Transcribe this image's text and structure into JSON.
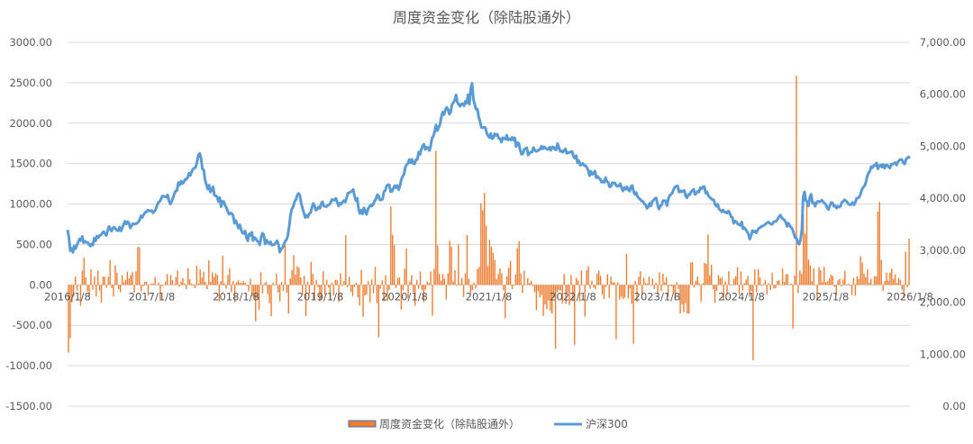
{
  "chart_data": {
    "type": "bar+line",
    "title": "周度资金变化（除陆股通外）",
    "left_axis": {
      "ylim": [
        -1500,
        3000
      ],
      "ticks": [
        -1500,
        -1000,
        -500,
        0,
        500,
        1000,
        1500,
        2000,
        2500,
        3000
      ],
      "tick_labels": [
        "-1500.00",
        "-1000.00",
        "-500.00",
        "0.00",
        "500.00",
        "1000.00",
        "1500.00",
        "2000.00",
        "2500.00",
        "3000.00"
      ]
    },
    "right_axis": {
      "ylim": [
        0,
        7000
      ],
      "ticks": [
        0,
        1000,
        2000,
        3000,
        4000,
        5000,
        6000,
        7000
      ],
      "tick_labels": [
        "0.00",
        "1,000.00",
        "2,000.00",
        "3,000.00",
        "4,000.00",
        "5,000.00",
        "6,000.00",
        "7,000.00"
      ]
    },
    "x_tick_labels": [
      "2016/1/8",
      "2017/1/8",
      "2018/1/8",
      "2019/1/8",
      "2020/1/8",
      "2021/1/8",
      "2022/1/8",
      "2023/1/8",
      "2024/1/8",
      "2025/1/8",
      "2026/1/8"
    ],
    "grid": true,
    "legend_position": "bottom",
    "colors": {
      "bars": "#ED7D31",
      "line": "#5B9BD5",
      "grid": "#D9D9D9",
      "text": "#595959"
    },
    "series": [
      {
        "name": "周度资金变化（除陆股通外）",
        "type": "bar",
        "axis": "left",
        "values": [
          -836,
          -660,
          -216,
          -141,
          104,
          -69,
          2,
          -258,
          176,
          337,
          94,
          -83,
          -139,
          192,
          -57,
          101,
          -141,
          175,
          -71,
          -218,
          104,
          100,
          -35,
          100,
          304,
          -40,
          -143,
          241,
          151,
          -52,
          -90,
          119,
          32,
          60,
          163,
          78,
          123,
          159,
          -95,
          168,
          470,
          465,
          -80,
          -16,
          37,
          42,
          -130,
          6,
          17,
          17,
          96,
          3,
          29,
          -180,
          -16,
          -5,
          43,
          134,
          -6,
          121,
          58,
          -6,
          97,
          179,
          -22,
          40,
          83,
          19,
          -51,
          206,
          70,
          17,
          -11,
          -41,
          237,
          16,
          192,
          90,
          165,
          38,
          -54,
          303,
          37,
          157,
          99,
          145,
          120,
          -204,
          48,
          361,
          21,
          -47,
          122,
          204,
          -88,
          45,
          -215,
          33,
          57,
          29,
          25,
          44,
          27,
          -12,
          -81,
          75,
          -142,
          -160,
          -449,
          -160,
          -310,
          156,
          -106,
          16,
          36,
          -112,
          -226,
          -387,
          27,
          -8,
          137,
          -95,
          -204,
          37,
          -75,
          501,
          -98,
          -353,
          79,
          185,
          368,
          127,
          233,
          211,
          92,
          -117,
          113,
          -386,
          40,
          -113,
          283,
          136,
          -185,
          61,
          -27,
          -203,
          -188,
          170,
          -122,
          61,
          -32,
          -172,
          26,
          -130,
          63,
          58,
          -212,
          143,
          -15,
          50,
          613,
          -27,
          99,
          -88,
          -139,
          -26,
          27,
          -154,
          -257,
          186,
          -394,
          -133,
          -116,
          47,
          -217,
          68,
          -103,
          223,
          -226,
          -650,
          -48,
          58,
          -204,
          118,
          -196,
          -62,
          969,
          618,
          491,
          -39,
          84,
          92,
          -304,
          -68,
          201,
          448,
          -161,
          39,
          120,
          -86,
          -257,
          61,
          -49,
          167,
          -64,
          -214,
          -60,
          43,
          21,
          164,
          -380,
          199,
          1657,
          488,
          137,
          53,
          135,
          79,
          -181,
          143,
          546,
          472,
          42,
          181,
          -14,
          501,
          16,
          85,
          -150,
          143,
          616,
          76,
          -102,
          -66,
          28,
          -45,
          198,
          223,
          1012,
          925,
          1137,
          734,
          232,
          559,
          469,
          396,
          308,
          73,
          136,
          205,
          144,
          -66,
          -412,
          107,
          212,
          297,
          -54,
          -11,
          129,
          455,
          542,
          144,
          -102,
          175,
          -3,
          83,
          22,
          52,
          -13,
          -91,
          -313,
          -77,
          -157,
          -123,
          -383,
          -241,
          -301,
          -192,
          -318,
          -353,
          -162,
          -788,
          -93,
          -62,
          -68,
          -228,
          134,
          -234,
          -95,
          -250,
          121,
          -200,
          -741,
          87,
          56,
          -200,
          179,
          0,
          -391,
          184,
          233,
          -48,
          51,
          -33,
          -53,
          140,
          177,
          112,
          -116,
          -176,
          -26,
          130,
          -159,
          103,
          31,
          32,
          -671,
          32,
          -181,
          -144,
          -174,
          -154,
          386,
          -167,
          -45,
          -233,
          -729,
          50,
          -211,
          100,
          168,
          -129,
          90,
          21,
          18,
          105,
          -6,
          78,
          -50,
          24,
          -115,
          153,
          -73,
          139,
          33,
          96,
          -149,
          -11,
          -20,
          -102,
          -188,
          34,
          -51,
          -353,
          -244,
          -338,
          -227,
          -354,
          -354,
          275,
          282,
          -33,
          48,
          106,
          22,
          -205,
          19,
          271,
          259,
          623,
          120,
          250,
          -55,
          -222,
          -73,
          120,
          80,
          99,
          -191,
          41,
          -122,
          169,
          10,
          3,
          77,
          106,
          218,
          -122,
          166,
          -68,
          20,
          66,
          109,
          -147,
          -76,
          -934,
          193,
          -89,
          196,
          92,
          -12,
          11,
          58,
          -118,
          19,
          -65,
          149,
          -47,
          -41,
          51,
          57,
          6,
          202,
          36,
          132,
          132,
          5,
          16,
          -540,
          117,
          2585,
          -102,
          178,
          139,
          867,
          633,
          1033,
          314,
          242,
          45,
          206,
          4,
          -183,
          218,
          183,
          34,
          223,
          32,
          45,
          80,
          126,
          111,
          -23,
          -126,
          57,
          76,
          -20,
          68,
          174,
          -7,
          14,
          -11,
          -125,
          86,
          -135,
          104,
          71,
          354,
          276,
          141,
          96,
          192,
          28,
          76,
          -4,
          108,
          104,
          907,
          1025,
          307,
          -76,
          50,
          153,
          54,
          151,
          201,
          76,
          130,
          25,
          87,
          60,
          -57,
          -164,
          411,
          -31,
          571
        ]
      },
      {
        "name": "沪深300",
        "type": "line",
        "axis": "right",
        "values": [
          3394,
          3245,
          2990,
          3040,
          2960,
          3080,
          3030,
          3095,
          3160,
          3218,
          3188,
          3265,
          3144,
          3173,
          3151,
          3151,
          3115,
          3080,
          3122,
          3100,
          3235,
          3180,
          3272,
          3241,
          3285,
          3291,
          3330,
          3358,
          3321,
          3282,
          3371,
          3457,
          3409,
          3369,
          3428,
          3442,
          3414,
          3380,
          3375,
          3447,
          3372,
          3428,
          3500,
          3557,
          3503,
          3551,
          3520,
          3428,
          3473,
          3512,
          3500,
          3510,
          3518,
          3545,
          3582,
          3662,
          3630,
          3682,
          3727,
          3734,
          3770,
          3760,
          3756,
          3764,
          3720,
          3747,
          3789,
          3862,
          3921,
          3934,
          3986,
          4044,
          4032,
          4037,
          4020,
          4065,
          3950,
          3889,
          3938,
          4011,
          4090,
          4139,
          4149,
          4302,
          4258,
          4328,
          4283,
          4305,
          4362,
          4366,
          4405,
          4480,
          4440,
          4514,
          4562,
          4580,
          4600,
          4696,
          4834,
          4862,
          4766,
          4563,
          4545,
          4356,
          4259,
          4177,
          4250,
          4120,
          4154,
          4222,
          4054,
          4049,
          4028,
          3935,
          4013,
          3838,
          3941,
          3935,
          3860,
          3819,
          3744,
          3692,
          3716,
          3709,
          3667,
          3520,
          3574,
          3504,
          3426,
          3489,
          3400,
          3328,
          3324,
          3370,
          3242,
          3180,
          3314,
          3287,
          3346,
          3186,
          3246,
          3224,
          3179,
          3162,
          3104,
          3251,
          3328,
          3296,
          3120,
          3196,
          3151,
          3122,
          3163,
          3097,
          3107,
          3110,
          3147,
          3182,
          3110,
          2964,
          3021,
          3049,
          3112,
          3172,
          3204,
          3280,
          3455,
          3684,
          3795,
          3835,
          3932,
          3970,
          4055,
          4094,
          4057,
          3905,
          3807,
          3721,
          3631,
          3669,
          3638,
          3702,
          3721,
          3819,
          3900,
          3854,
          3769,
          3794,
          3835,
          3805,
          3900,
          3932,
          3847,
          3843,
          3840,
          3868,
          3879,
          3910,
          3977,
          3965,
          3964,
          3999,
          3924,
          3852,
          3906,
          3889,
          3930,
          3955,
          3927,
          4007,
          4100,
          4105,
          4120,
          4140,
          4167,
          4040,
          3956,
          4000,
          3792,
          3708,
          3770,
          3700,
          3816,
          3740,
          3690,
          3793,
          3831,
          3870,
          3850,
          3885,
          3951,
          3982,
          4068,
          4049,
          3967,
          3967,
          3985,
          4133,
          4147,
          4239,
          4261,
          4256,
          4126,
          4131,
          4189,
          4241,
          4202,
          4246,
          4163,
          4242,
          4358,
          4422,
          4460,
          4599,
          4645,
          4670,
          4745,
          4685,
          4748,
          4668,
          4663,
          4743,
          4745,
          4890,
          4842,
          4941,
          5010,
          5039,
          4939,
          4982,
          4974,
          4918,
          5006,
          5155,
          5190,
          5283,
          5410,
          5300,
          5362,
          5425,
          5566,
          5656,
          5608,
          5702,
          5748,
          5708,
          5617,
          5659,
          5807,
          5838,
          5886,
          5989,
          5848,
          5806,
          5771,
          5811,
          5820,
          5779,
          5864,
          5832,
          5993,
          5807,
          6104,
          6211,
          5902,
          5806,
          5712,
          5713,
          5561,
          5477,
          5362,
          5354,
          5367,
          5361,
          5250,
          5203,
          5168,
          5245,
          5145,
          5163,
          5243,
          5210,
          5231,
          5152,
          5145,
          5080,
          5165,
          5155,
          5133,
          5212,
          5122,
          5143,
          5122,
          5173,
          5123,
          5161,
          4995,
          5070,
          5058,
          4934,
          4847,
          4855,
          4935,
          4960,
          4971,
          4831,
          4865,
          4888,
          4890,
          4975,
          4927,
          4902,
          4911,
          4934,
          4940,
          5003,
          4952,
          4989,
          4966,
          4945,
          4940,
          4983,
          4922,
          4985,
          4986,
          4940,
          4932,
          5052,
          4979,
          4903,
          4911,
          4885,
          4923,
          4950,
          4864,
          4879,
          4880,
          4896,
          4900,
          4805,
          4771,
          4821,
          4685,
          4725,
          4636,
          4653,
          4672,
          4628,
          4631,
          4587,
          4540,
          4433,
          4519,
          4461,
          4473,
          4523,
          4398,
          4420,
          4387,
          4367,
          4310,
          4329,
          4306,
          4398,
          4328,
          4302,
          4219,
          4228,
          4300,
          4289,
          4297,
          4246,
          4227,
          4240,
          4280,
          4200,
          4143,
          4206,
          4170,
          4220,
          4167,
          4136,
          4223,
          4246,
          4130,
          4076,
          4110,
          4028,
          4000,
          3978,
          3946,
          3940,
          3891,
          3871,
          3807,
          3831,
          3904,
          3855,
          3940,
          3963,
          3997,
          4005,
          3872,
          3792,
          3855,
          3870,
          3954,
          3958,
          3945,
          3858,
          3986,
          4050,
          4076,
          4101,
          4170,
          4219,
          4232,
          4238,
          4119,
          4145,
          4122,
          4140,
          4149,
          4040,
          4009,
          4074,
          4069,
          4120,
          4150,
          4173,
          4075,
          4097,
          4133,
          4121,
          4204,
          4180,
          4223,
          4223,
          4095,
          4123,
          4053,
          4018,
          3995,
          3975,
          3971,
          3889,
          3848,
          3885,
          3793,
          3773,
          3740,
          3775,
          3733,
          3734,
          3713,
          3756,
          3716,
          3643,
          3630,
          3520,
          3562,
          3549,
          3503,
          3493,
          3476,
          3545,
          3412,
          3431,
          3399,
          3359,
          3311,
          3214,
          3277,
          3378,
          3351,
          3368,
          3337,
          3395,
          3427,
          3436,
          3466,
          3465,
          3486,
          3508,
          3526,
          3543,
          3522,
          3499,
          3503,
          3547,
          3554,
          3562,
          3602,
          3650,
          3675,
          3626,
          3598,
          3582,
          3534,
          3458,
          3523,
          3468,
          3444,
          3403,
          3323,
          3241,
          3233,
          3150,
          3116,
          3203,
          3381,
          4017,
          4123,
          3959,
          3929,
          3854,
          4017,
          4077,
          3905,
          3916,
          3846,
          3915,
          3943,
          3930,
          3938,
          3965,
          3931,
          3906,
          3882,
          3815,
          3781,
          3856,
          3920,
          3912,
          3848,
          3856,
          3810,
          3848,
          3827,
          3849,
          3922,
          3938,
          3970,
          3951,
          3929,
          3887,
          3875,
          3881,
          3921,
          3874,
          3915,
          3999,
          4006,
          4017,
          4082,
          4166,
          4212,
          4237,
          4305,
          4422,
          4487,
          4524,
          4608,
          4589,
          4635,
          4629,
          4680,
          4568,
          4620,
          4641,
          4601,
          4651,
          4579,
          4641,
          4640,
          4602,
          4581,
          4653,
          4650,
          4674,
          4686,
          4640,
          4700,
          4728,
          4748,
          4740,
          4682,
          4660,
          4745,
          4776,
          4796,
          4771
        ]
      }
    ]
  }
}
